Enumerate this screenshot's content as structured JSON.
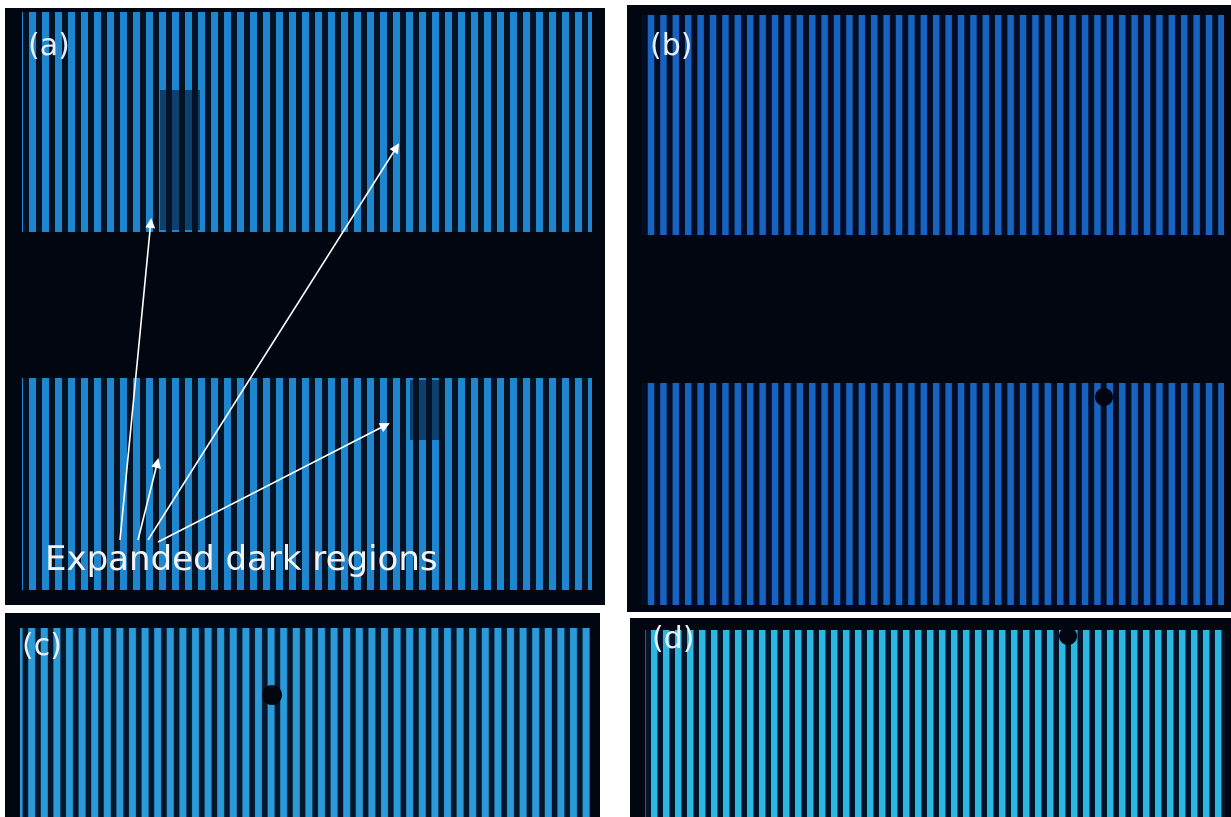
{
  "panels": [
    {
      "label": "(a)"
    },
    {
      "label": "(b)"
    },
    {
      "label": "(c)"
    },
    {
      "label": "(d)"
    }
  ],
  "annotation": "Expanded dark regions"
}
